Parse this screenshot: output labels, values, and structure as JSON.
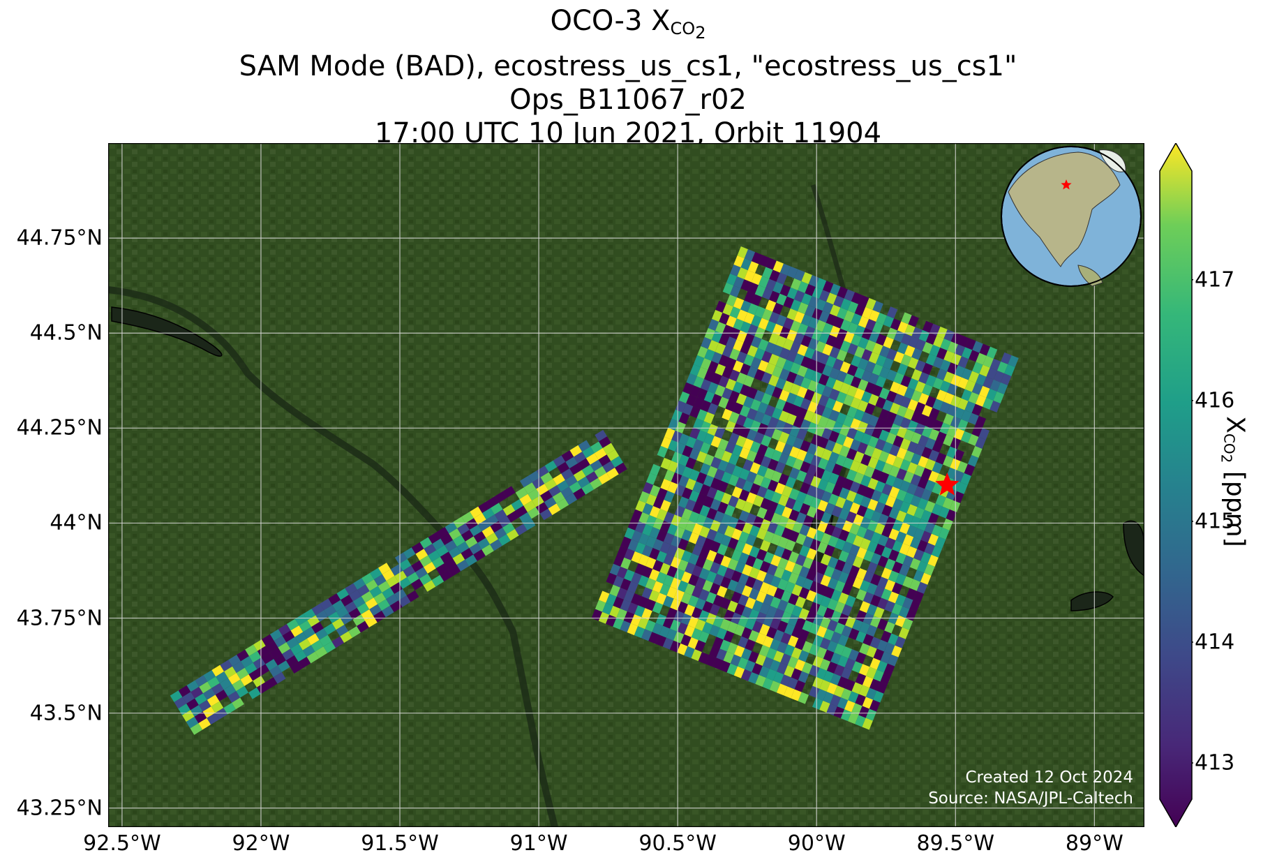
{
  "title": {
    "line1_prefix": "OCO-3 X",
    "line1_sub": "CO",
    "line1_sub2": "2",
    "line2": "SAM Mode (BAD), ecostress_us_cs1, \"ecostress_us_cs1\"",
    "line3": "Ops_B11067_r02",
    "line4": "17:00 UTC 10 Jun 2021, Orbit 11904"
  },
  "map": {
    "lon_range": [
      -92.55,
      -88.82
    ],
    "lat_range": [
      43.2,
      45.0
    ],
    "x_ticks": [
      {
        "lon": -92.5,
        "label": "92.5°W"
      },
      {
        "lon": -92.0,
        "label": "92°W"
      },
      {
        "lon": -91.5,
        "label": "91.5°W"
      },
      {
        "lon": -91.0,
        "label": "91°W"
      },
      {
        "lon": -90.5,
        "label": "90.5°W"
      },
      {
        "lon": -90.0,
        "label": "90°W"
      },
      {
        "lon": -89.5,
        "label": "89.5°W"
      },
      {
        "lon": -89.0,
        "label": "89°W"
      }
    ],
    "y_ticks": [
      {
        "lat": 44.75,
        "label": "44.75°N"
      },
      {
        "lat": 44.5,
        "label": "44.5°N"
      },
      {
        "lat": 44.25,
        "label": "44.25°N"
      },
      {
        "lat": 44.0,
        "label": "44°N"
      },
      {
        "lat": 43.75,
        "label": "43.75°N"
      },
      {
        "lat": 43.5,
        "label": "43.5°N"
      },
      {
        "lat": 43.25,
        "label": "43.25°N"
      }
    ],
    "target": {
      "lon": -89.53,
      "lat": 44.1
    },
    "inset_star": {
      "lon": -89.5,
      "lat": 44.1
    },
    "background": "satellite-imagery",
    "grid": true,
    "colors": {
      "land": "#2f4a1f",
      "water": "#26331f",
      "grid": "#d8d8d8",
      "star": "#ff0000"
    }
  },
  "swaths": [
    {
      "name": "narrow-strip",
      "start": {
        "lon": -92.28,
        "lat": 43.49
      },
      "end": {
        "lon": -90.72,
        "lat": 44.19
      },
      "half_width_deg": 0.09
    },
    {
      "name": "wide-fan",
      "start": {
        "lon": -90.3,
        "lat": 43.6
      },
      "end": {
        "lon": -89.75,
        "lat": 44.6
      },
      "half_width_deg": 0.55
    }
  ],
  "colorbar": {
    "min": 412.7,
    "max": 417.9,
    "ticks": [
      413,
      414,
      415,
      416,
      417
    ],
    "label_prefix": "X",
    "label_sub": "CO",
    "label_sub2": "2",
    "label_suffix": " [ppm]",
    "colormap": "viridis",
    "extend": "both"
  },
  "credits": {
    "created": "Created 12 Oct 2024",
    "source": "Source: NASA/JPL-Caltech"
  }
}
